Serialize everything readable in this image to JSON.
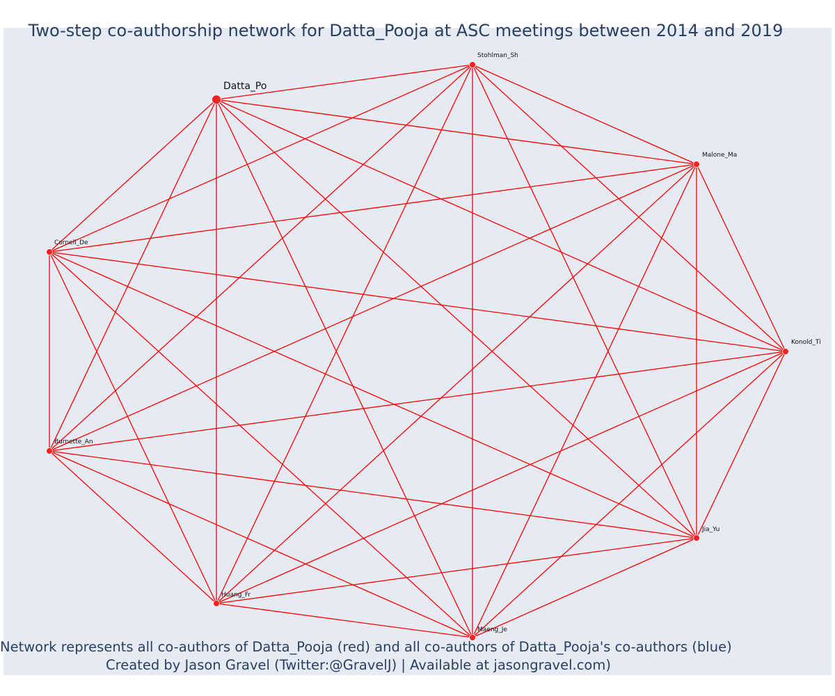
{
  "title": "Two-step co-authorship network for Datta_Pooja at ASC meetings between 2014 and 2019",
  "caption_line1": "Network represents all co-authors of Datta_Pooja (red) and all co-authors of Datta_Pooja's co-authors (blue)",
  "caption_line2": "Created by Jason Gravel (Twitter:@GravelJ) | Available at jasongravel.com)",
  "colors": {
    "edge": "#ff0000",
    "node": "#ff2020",
    "node_outline": "#ffffff",
    "background": "#e5eaf3",
    "text": "#2a3f5f"
  },
  "network": {
    "focal_node": "Datta_Po",
    "nodes": [
      {
        "id": "Datta_Po",
        "focal": true
      },
      {
        "id": "Stohlman_Sh"
      },
      {
        "id": "Malone_Ma"
      },
      {
        "id": "Konold_Ti"
      },
      {
        "id": "Jia_Yu"
      },
      {
        "id": "Maeng_Je"
      },
      {
        "id": "Huang_Fr"
      },
      {
        "id": "Burnette_An"
      },
      {
        "id": "Cornell_De"
      }
    ],
    "edges": "complete"
  }
}
